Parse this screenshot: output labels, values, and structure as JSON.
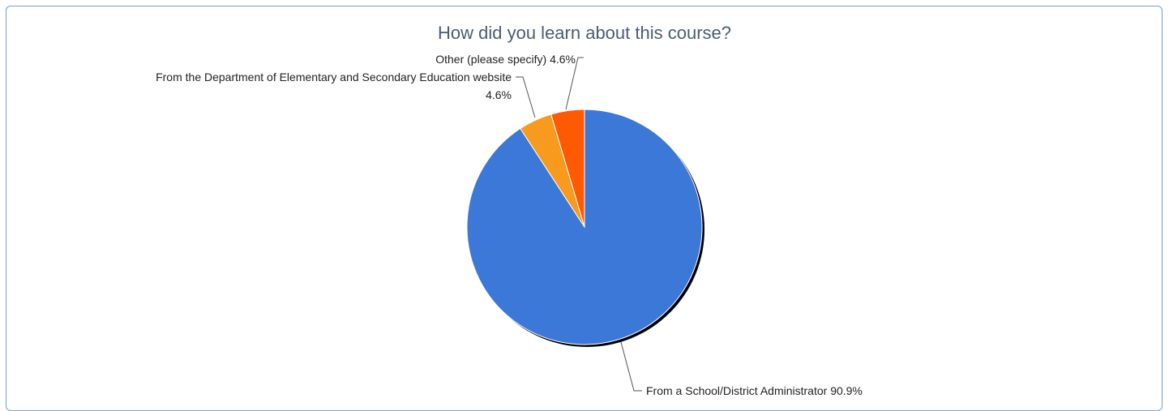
{
  "chart_data": {
    "type": "pie",
    "title": "How did you learn about this course?",
    "categories": [
      "From a School/District Administrator",
      "From the Department of Elementary and Secondary Education website",
      "Other (please specify)"
    ],
    "values": [
      90.9,
      4.6,
      4.6
    ],
    "value_labels": [
      "90.9%",
      "4.6%",
      "4.6%"
    ],
    "colors": [
      "#3b78d8",
      "#f79a1e",
      "#fe5a04"
    ]
  }
}
